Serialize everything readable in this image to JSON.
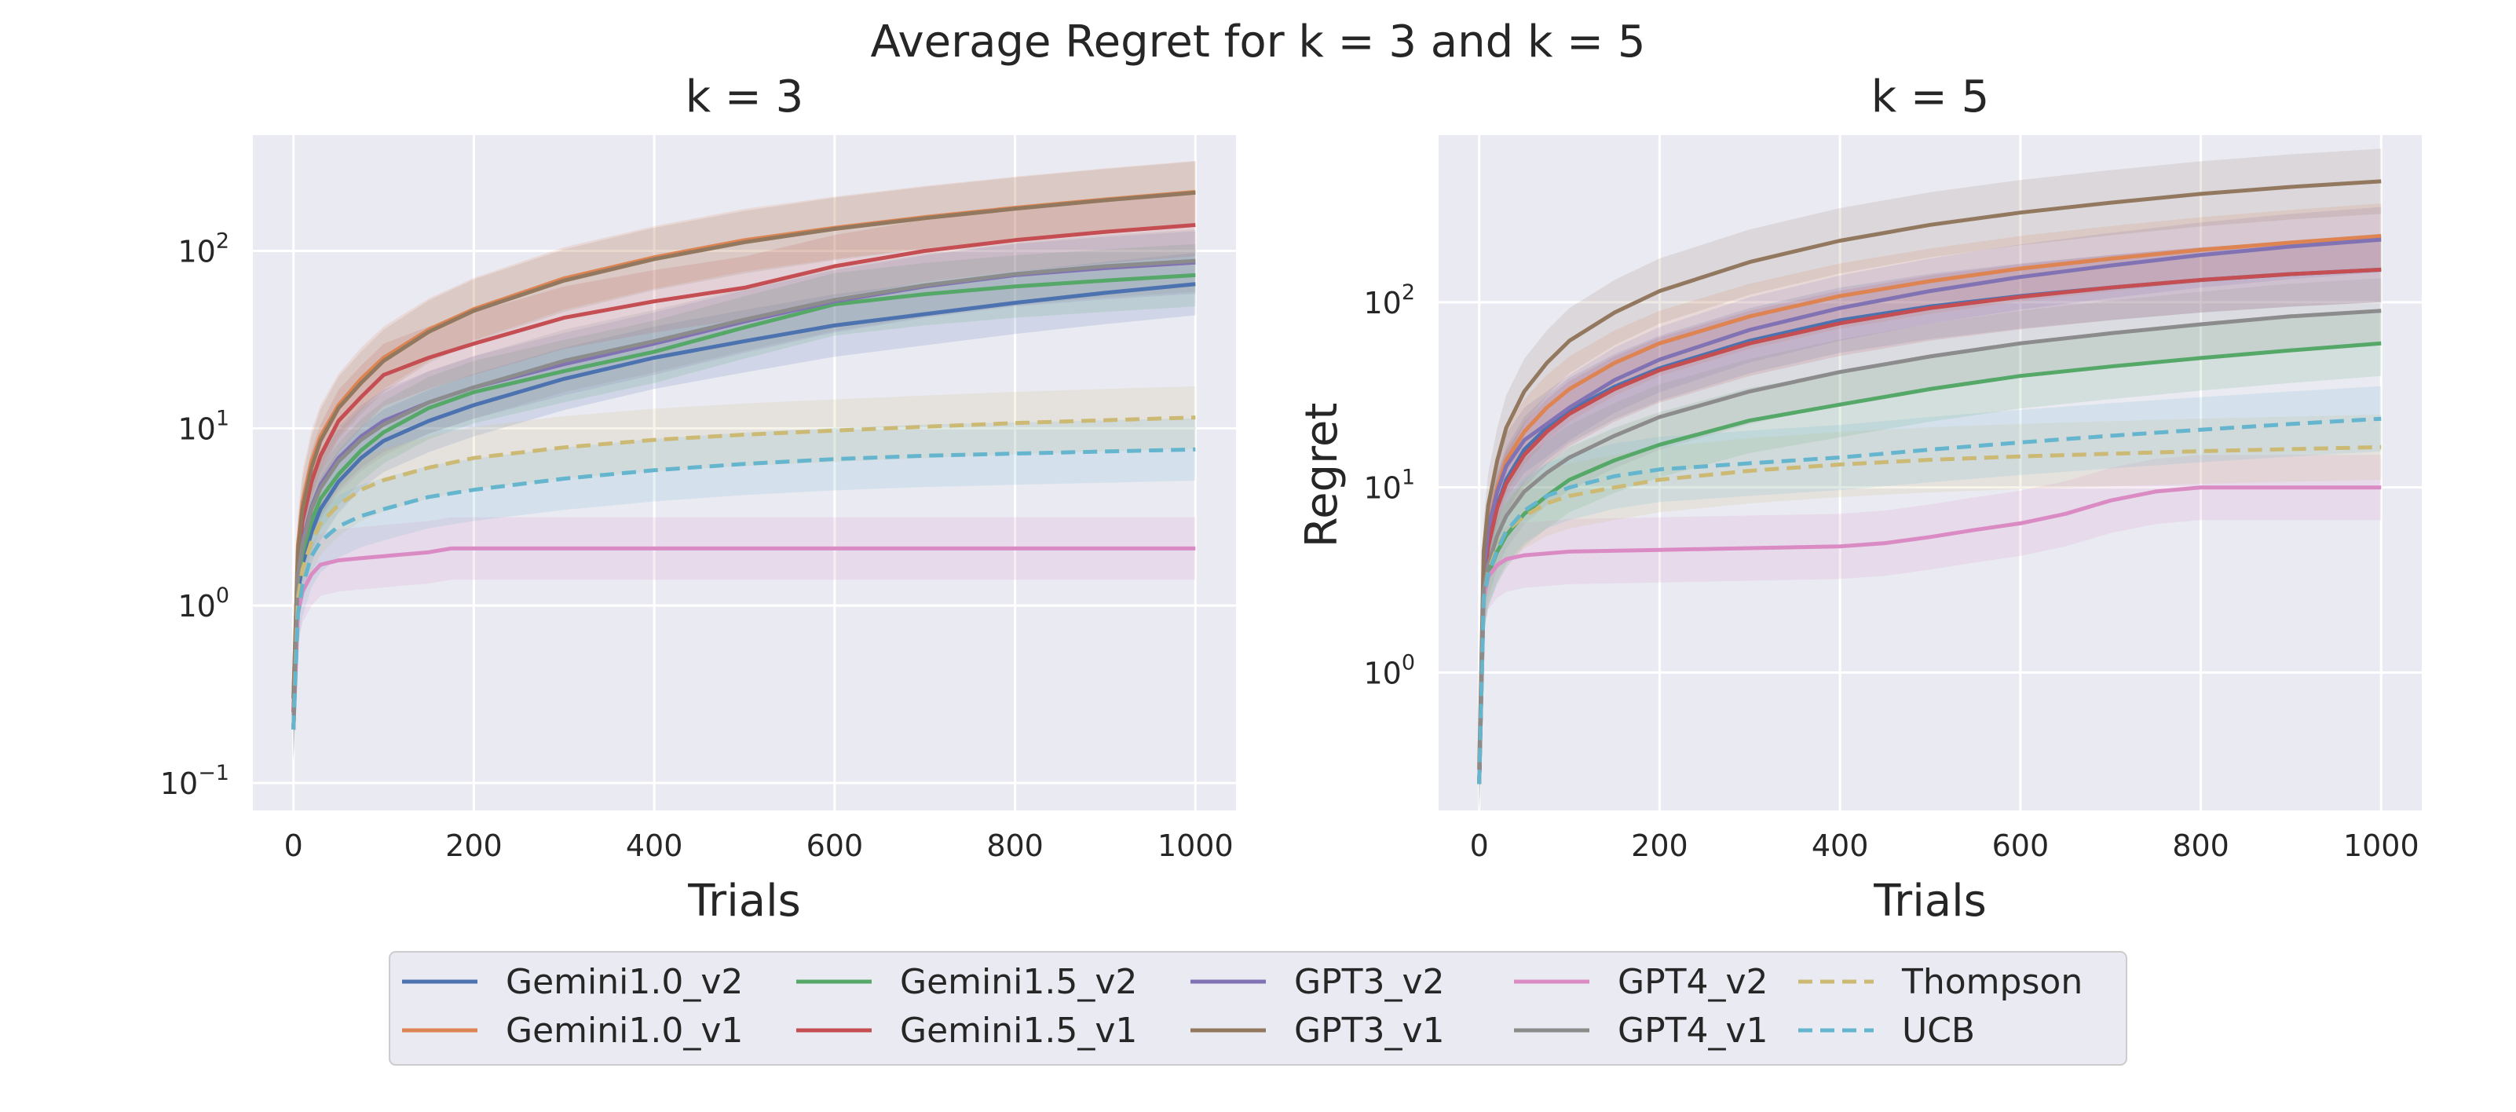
{
  "figure": {
    "title": "Average Regret for k = 3 and k = 5"
  },
  "legend": {
    "entries": [
      {
        "name": "Gemini1.0_v2",
        "color": "#4c72b0",
        "dashed": false
      },
      {
        "name": "Gemini1.0_v1",
        "color": "#dd8452",
        "dashed": false
      },
      {
        "name": "Gemini1.5_v2",
        "color": "#55a868",
        "dashed": false
      },
      {
        "name": "Gemini1.5_v1",
        "color": "#c44e52",
        "dashed": false
      },
      {
        "name": "GPT3_v2",
        "color": "#8172b3",
        "dashed": false
      },
      {
        "name": "GPT3_v1",
        "color": "#937860",
        "dashed": false
      },
      {
        "name": "GPT4_v2",
        "color": "#da8bc3",
        "dashed": false
      },
      {
        "name": "GPT4_v1",
        "color": "#8c8c8c",
        "dashed": false
      },
      {
        "name": "Thompson",
        "color": "#ccb974",
        "dashed": true
      },
      {
        "name": "UCB",
        "color": "#64b5cd",
        "dashed": true
      }
    ]
  },
  "chart_data": [
    {
      "type": "line",
      "title": "k = 3",
      "xlabel": "Trials",
      "ylabel": "",
      "yscale": "log",
      "xlim": [
        -45,
        1045
      ],
      "ylim": [
        0.07,
        450
      ],
      "xticks": [
        0,
        200,
        400,
        600,
        800,
        1000
      ],
      "xtick_labels": [
        "0",
        "200",
        "400",
        "600",
        "800",
        "1000"
      ],
      "yticks": [
        0.1,
        1,
        10,
        100
      ],
      "ytick_labels": [
        [
          "10",
          "−1"
        ],
        [
          "10",
          "0"
        ],
        [
          "10",
          "1"
        ],
        [
          "10",
          "2"
        ]
      ],
      "grid": true,
      "series": [
        {
          "name": "Gemini1.0_v2",
          "x": [
            0,
            5,
            10,
            20,
            30,
            50,
            75,
            100,
            150,
            200,
            300,
            400,
            500,
            600,
            700,
            800,
            900,
            1000
          ],
          "values": [
            0.2,
            1.2,
            1.7,
            2.6,
            3.5,
            5.0,
            6.8,
            8.5,
            11,
            13.5,
            19,
            25,
            31,
            38,
            44,
            51,
            58,
            65
          ]
        },
        {
          "name": "Gemini1.0_v1",
          "x": [
            0,
            5,
            10,
            20,
            30,
            50,
            75,
            100,
            150,
            200,
            300,
            400,
            500,
            600,
            700,
            800,
            900,
            1000
          ],
          "values": [
            0.3,
            2.2,
            3.8,
            6.5,
            9,
            13.5,
            19,
            25,
            36,
            47,
            70,
            92,
            115,
            135,
            155,
            175,
            195,
            215
          ]
        },
        {
          "name": "Gemini1.5_v2",
          "x": [
            0,
            5,
            10,
            20,
            30,
            50,
            75,
            100,
            150,
            200,
            300,
            400,
            500,
            600,
            700,
            800,
            900,
            1000
          ],
          "values": [
            0.2,
            1.4,
            2.0,
            3.0,
            4.0,
            5.5,
            7.5,
            9.5,
            13,
            16,
            21,
            27,
            37,
            50,
            57,
            63,
            68,
            73
          ]
        },
        {
          "name": "Gemini1.5_v1",
          "x": [
            0,
            5,
            10,
            20,
            30,
            50,
            75,
            100,
            150,
            200,
            300,
            400,
            500,
            600,
            700,
            800,
            900,
            1000
          ],
          "values": [
            0.25,
            1.8,
            3.0,
            5.0,
            7.0,
            11,
            15,
            20,
            25,
            30,
            42,
            52,
            62,
            82,
            100,
            115,
            128,
            140
          ]
        },
        {
          "name": "GPT3_v2",
          "x": [
            0,
            5,
            10,
            20,
            30,
            50,
            75,
            100,
            150,
            200,
            300,
            400,
            500,
            600,
            700,
            800,
            900,
            1000
          ],
          "values": [
            0.2,
            1.5,
            2.3,
            3.6,
            4.8,
            6.8,
            9,
            11,
            14,
            17,
            23,
            30,
            40,
            52,
            63,
            73,
            80,
            86
          ]
        },
        {
          "name": "GPT3_v1",
          "x": [
            0,
            5,
            10,
            20,
            30,
            50,
            75,
            100,
            150,
            200,
            300,
            400,
            500,
            600,
            700,
            800,
            900,
            1000
          ],
          "values": [
            0.3,
            2.0,
            3.5,
            6.0,
            8.5,
            13,
            18,
            24,
            35,
            46,
            68,
            90,
            112,
            133,
            153,
            173,
            193,
            213
          ]
        },
        {
          "name": "GPT4_v2",
          "x": [
            0,
            5,
            10,
            20,
            30,
            50,
            75,
            100,
            150,
            175,
            200,
            400,
            600,
            800,
            1000
          ],
          "values": [
            0.2,
            0.9,
            1.2,
            1.5,
            1.7,
            1.8,
            1.85,
            1.9,
            2.0,
            2.1,
            2.1,
            2.1,
            2.1,
            2.1,
            2.1
          ]
        },
        {
          "name": "GPT4_v1",
          "x": [
            0,
            5,
            10,
            20,
            30,
            50,
            75,
            100,
            150,
            200,
            300,
            400,
            500,
            600,
            700,
            800,
            900,
            1000
          ],
          "values": [
            0.2,
            1.5,
            2.2,
            3.5,
            4.6,
            6.5,
            8.6,
            10.5,
            14,
            17,
            24,
            31,
            41,
            53,
            64,
            74,
            82,
            88
          ]
        },
        {
          "name": "Thompson",
          "x": [
            0,
            5,
            10,
            20,
            30,
            50,
            75,
            100,
            150,
            200,
            300,
            400,
            500,
            600,
            700,
            800,
            900,
            1000
          ],
          "values": [
            0.2,
            1.1,
            1.6,
            2.3,
            2.9,
            3.7,
            4.5,
            5.1,
            6.0,
            6.8,
            7.8,
            8.6,
            9.2,
            9.7,
            10.2,
            10.7,
            11.1,
            11.5
          ]
        },
        {
          "name": "UCB",
          "x": [
            0,
            5,
            10,
            20,
            30,
            50,
            75,
            100,
            150,
            200,
            300,
            400,
            500,
            600,
            700,
            800,
            900,
            1000
          ],
          "values": [
            0.2,
            0.9,
            1.3,
            1.9,
            2.3,
            2.8,
            3.2,
            3.5,
            4.1,
            4.5,
            5.2,
            5.8,
            6.3,
            6.7,
            7.0,
            7.2,
            7.4,
            7.6
          ]
        }
      ],
      "bands": [
        {
          "name": "Gemini1.0_v2",
          "low": [
            0.15,
            0.6,
            0.9,
            1.4,
            1.9,
            2.7,
            3.6,
            4.5,
            6,
            7.5,
            10,
            13,
            16,
            19,
            21,
            23,
            25,
            26
          ],
          "high": [
            0.3,
            2.0,
            2.8,
            4.2,
            5.6,
            8,
            11,
            13.5,
            17,
            21,
            29,
            38,
            48,
            58,
            68,
            78,
            88,
            98
          ]
        },
        {
          "name": "Gemini1.0_v1",
          "low": [
            0.2,
            1.4,
            2.5,
            4.3,
            6,
            9,
            12.5,
            16,
            23,
            30,
            45,
            60,
            75,
            90,
            102,
            115,
            128,
            140
          ]
        },
        {
          "name": "Gemini1.0_v1",
          "high": [
            0.45,
            3.3,
            5.6,
            9.5,
            13,
            20,
            28,
            37,
            53,
            69,
            103,
            135,
            168,
            198,
            228,
            257,
            286,
            310
          ]
        }
      ]
    },
    {
      "type": "line",
      "title": "k = 5",
      "xlabel": "Trials",
      "ylabel": "Regret",
      "yscale": "log",
      "xlim": [
        -45,
        1045
      ],
      "ylim": [
        0.18,
        800
      ],
      "xticks": [
        0,
        200,
        400,
        600,
        800,
        1000
      ],
      "xtick_labels": [
        "0",
        "200",
        "400",
        "600",
        "800",
        "1000"
      ],
      "yticks": [
        1,
        10,
        100
      ],
      "ytick_labels": [
        [
          "10",
          "0"
        ],
        [
          "10",
          "1"
        ],
        [
          "10",
          "2"
        ]
      ],
      "grid": true,
      "series": [
        {
          "name": "Gemini1.0_v2",
          "x": [
            0,
            5,
            10,
            20,
            30,
            50,
            75,
            100,
            150,
            200,
            300,
            400,
            500,
            600,
            700,
            800,
            900,
            1000
          ],
          "values": [
            0.25,
            3.0,
            5.0,
            8.0,
            11,
            16,
            21,
            26,
            35,
            44,
            62,
            80,
            95,
            108,
            120,
            132,
            142,
            150
          ]
        },
        {
          "name": "Gemini1.0_v1",
          "x": [
            0,
            5,
            10,
            20,
            30,
            50,
            75,
            100,
            150,
            200,
            300,
            400,
            500,
            600,
            700,
            800,
            900,
            1000
          ],
          "values": [
            0.3,
            3.5,
            6.0,
            10,
            14,
            20,
            27,
            34,
            47,
            60,
            84,
            108,
            130,
            152,
            172,
            192,
            210,
            228
          ]
        },
        {
          "name": "Gemini1.5_v2",
          "x": [
            0,
            5,
            10,
            20,
            30,
            50,
            75,
            100,
            150,
            200,
            300,
            400,
            500,
            600,
            700,
            800,
            900,
            1000
          ],
          "values": [
            0.25,
            2.5,
            3.4,
            4.5,
            5.5,
            7.2,
            9,
            11,
            14,
            17,
            23,
            28,
            34,
            40,
            45,
            50,
            55,
            60
          ]
        },
        {
          "name": "Gemini1.5_v1",
          "x": [
            0,
            5,
            10,
            20,
            30,
            50,
            75,
            100,
            150,
            200,
            300,
            400,
            500,
            600,
            700,
            800,
            900,
            1000
          ],
          "values": [
            0.25,
            3.0,
            4.8,
            7.8,
            10.5,
            15,
            20,
            25,
            34,
            43,
            60,
            77,
            93,
            107,
            120,
            132,
            142,
            150
          ]
        },
        {
          "name": "GPT3_v2",
          "x": [
            0,
            5,
            10,
            20,
            30,
            50,
            75,
            100,
            150,
            200,
            300,
            400,
            500,
            600,
            700,
            800,
            900,
            1000
          ],
          "values": [
            0.25,
            3.5,
            6,
            9.5,
            13,
            18,
            22,
            27,
            38,
            49,
            71,
            93,
            115,
            137,
            158,
            180,
            200,
            218
          ]
        },
        {
          "name": "GPT3_v1",
          "x": [
            0,
            5,
            10,
            20,
            30,
            50,
            75,
            100,
            150,
            200,
            300,
            400,
            500,
            600,
            700,
            800,
            900,
            1000
          ],
          "values": [
            0.3,
            4.5,
            8,
            14,
            21,
            33,
            47,
            62,
            88,
            115,
            165,
            215,
            262,
            305,
            345,
            385,
            420,
            450
          ]
        },
        {
          "name": "GPT4_v2",
          "x": [
            0,
            5,
            10,
            20,
            30,
            50,
            100,
            200,
            300,
            400,
            450,
            500,
            550,
            600,
            650,
            700,
            750,
            800,
            900,
            1000
          ],
          "values": [
            0.25,
            2.5,
            3.3,
            3.8,
            4.1,
            4.3,
            4.5,
            4.6,
            4.7,
            4.8,
            5.0,
            5.4,
            5.9,
            6.4,
            7.2,
            8.5,
            9.5,
            10,
            10,
            10
          ]
        },
        {
          "name": "GPT4_v1",
          "x": [
            0,
            5,
            10,
            20,
            30,
            50,
            75,
            100,
            150,
            200,
            300,
            400,
            500,
            600,
            700,
            800,
            900,
            1000
          ],
          "values": [
            0.25,
            2.8,
            3.8,
            5.5,
            7.0,
            9.5,
            12,
            14.5,
            19,
            24,
            33,
            42,
            51,
            60,
            68,
            76,
            84,
            90
          ]
        },
        {
          "name": "Thompson",
          "x": [
            0,
            5,
            10,
            20,
            30,
            50,
            75,
            100,
            150,
            200,
            300,
            400,
            500,
            600,
            700,
            800,
            900,
            1000
          ],
          "values": [
            0.25,
            2.5,
            3.5,
            4.8,
            5.8,
            7.0,
            8.2,
            9.0,
            10,
            11,
            12.3,
            13.3,
            14.1,
            14.7,
            15.2,
            15.7,
            16.1,
            16.5
          ]
        },
        {
          "name": "UCB",
          "x": [
            0,
            5,
            10,
            20,
            30,
            50,
            75,
            100,
            150,
            200,
            300,
            400,
            500,
            600,
            700,
            800,
            900,
            1000
          ],
          "values": [
            0.25,
            2.5,
            3.4,
            4.6,
            5.8,
            7.5,
            9.0,
            10,
            11.5,
            12.5,
            13.5,
            14.5,
            16,
            17.5,
            19,
            20.5,
            22,
            23.5
          ]
        }
      ]
    }
  ]
}
